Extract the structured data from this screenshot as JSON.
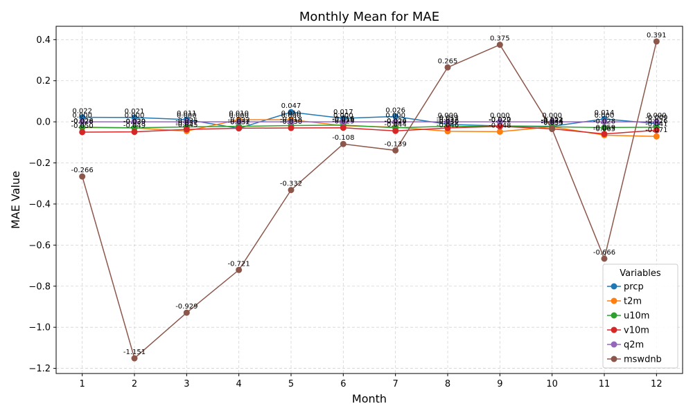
{
  "chart_data": {
    "type": "line",
    "title": "Monthly Mean for MAE",
    "xlabel": "Month",
    "ylabel": "MAE Value",
    "x": [
      1,
      2,
      3,
      4,
      5,
      6,
      7,
      8,
      9,
      10,
      11,
      12
    ],
    "xlim": [
      0.5,
      12.5
    ],
    "ylim": [
      -1.225,
      0.465
    ],
    "yticks": [
      0.4,
      0.2,
      0.0,
      -0.2,
      -0.4,
      -0.6,
      -0.8,
      -1.0,
      -1.2
    ],
    "ytick_labels": [
      "0.4",
      "0.2",
      "0.0",
      "−0.2",
      "−0.4",
      "−0.6",
      "−0.8",
      "−1.0",
      "−1.2"
    ],
    "grid": true,
    "legend_title": "Variables",
    "legend_position": "lower-right",
    "series": [
      {
        "name": "prcp",
        "color": "#1f77b4",
        "values": [
          0.022,
          0.021,
          0.011,
          -0.032,
          0.047,
          0.017,
          0.026,
          -0.012,
          -0.02,
          -0.022,
          0.014,
          -0.009
        ]
      },
      {
        "name": "t2m",
        "color": "#ff7f0e",
        "values": [
          -0.028,
          -0.03,
          -0.045,
          0.01,
          0.01,
          -0.019,
          -0.026,
          -0.046,
          -0.048,
          -0.024,
          -0.065,
          -0.071
        ]
      },
      {
        "name": "u10m",
        "color": "#2ca02c",
        "values": [
          -0.026,
          -0.029,
          -0.025,
          -0.022,
          -0.018,
          -0.016,
          -0.029,
          -0.022,
          -0.022,
          -0.024,
          -0.028,
          -0.026
        ]
      },
      {
        "name": "v10m",
        "color": "#d62728",
        "values": [
          -0.05,
          -0.049,
          -0.037,
          -0.031,
          -0.03,
          -0.029,
          -0.044,
          -0.03,
          -0.022,
          -0.034,
          -0.059,
          -0.041
        ]
      },
      {
        "name": "q2m",
        "color": "#9467bd",
        "values": [
          -0.0,
          -0.0,
          -0.0,
          -0.0,
          -0.0,
          -0.0,
          -0.0,
          -0.0,
          -0.0,
          -0.0,
          -0.0,
          -0.0
        ]
      },
      {
        "name": "mswdnb",
        "color": "#8c564b",
        "values": [
          -0.266,
          -1.151,
          -0.929,
          -0.721,
          -0.332,
          -0.108,
          -0.139,
          0.265,
          0.375,
          -0.035,
          -0.666,
          0.391
        ]
      }
    ]
  }
}
